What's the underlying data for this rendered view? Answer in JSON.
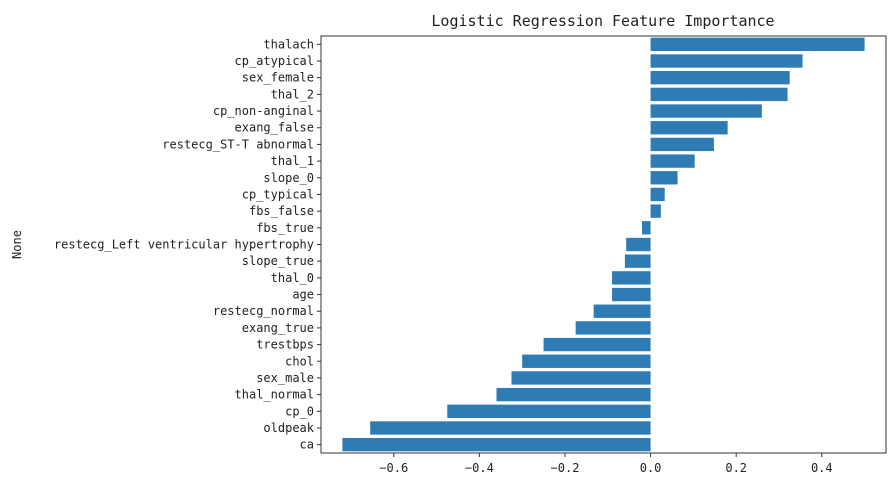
{
  "chart_data": {
    "type": "bar",
    "orientation": "horizontal",
    "title": "Logistic Regression Feature Importance",
    "xlabel": "",
    "ylabel": "None",
    "xlim": [
      -0.77,
      0.55
    ],
    "xticks": [
      -0.6,
      -0.4,
      -0.2,
      0.0,
      0.2,
      0.4
    ],
    "xtick_labels": [
      "−0.6",
      "−0.4",
      "−0.2",
      "0.0",
      "0.2",
      "0.4"
    ],
    "grid": false,
    "bar_color": "#2f7bb3",
    "categories": [
      "thalach",
      "cp_atypical",
      "sex_female",
      "thal_2",
      "cp_non-anginal",
      "exang_false",
      "restecg_ST-T abnormal",
      "thal_1",
      "slope_0",
      "cp_typical",
      "fbs_false",
      "fbs_true",
      "restecg_Left ventricular hypertrophy",
      "slope_true",
      "thal_0",
      "age",
      "restecg_normal",
      "exang_true",
      "trestbps",
      "chol",
      "sex_male",
      "thal_normal",
      "cp_0",
      "oldpeak",
      "ca"
    ],
    "values": [
      0.5,
      0.355,
      0.325,
      0.32,
      0.26,
      0.18,
      0.148,
      0.103,
      0.063,
      0.033,
      0.024,
      -0.02,
      -0.057,
      -0.06,
      -0.09,
      -0.09,
      -0.133,
      -0.175,
      -0.25,
      -0.3,
      -0.325,
      -0.36,
      -0.475,
      -0.655,
      -0.72
    ]
  }
}
